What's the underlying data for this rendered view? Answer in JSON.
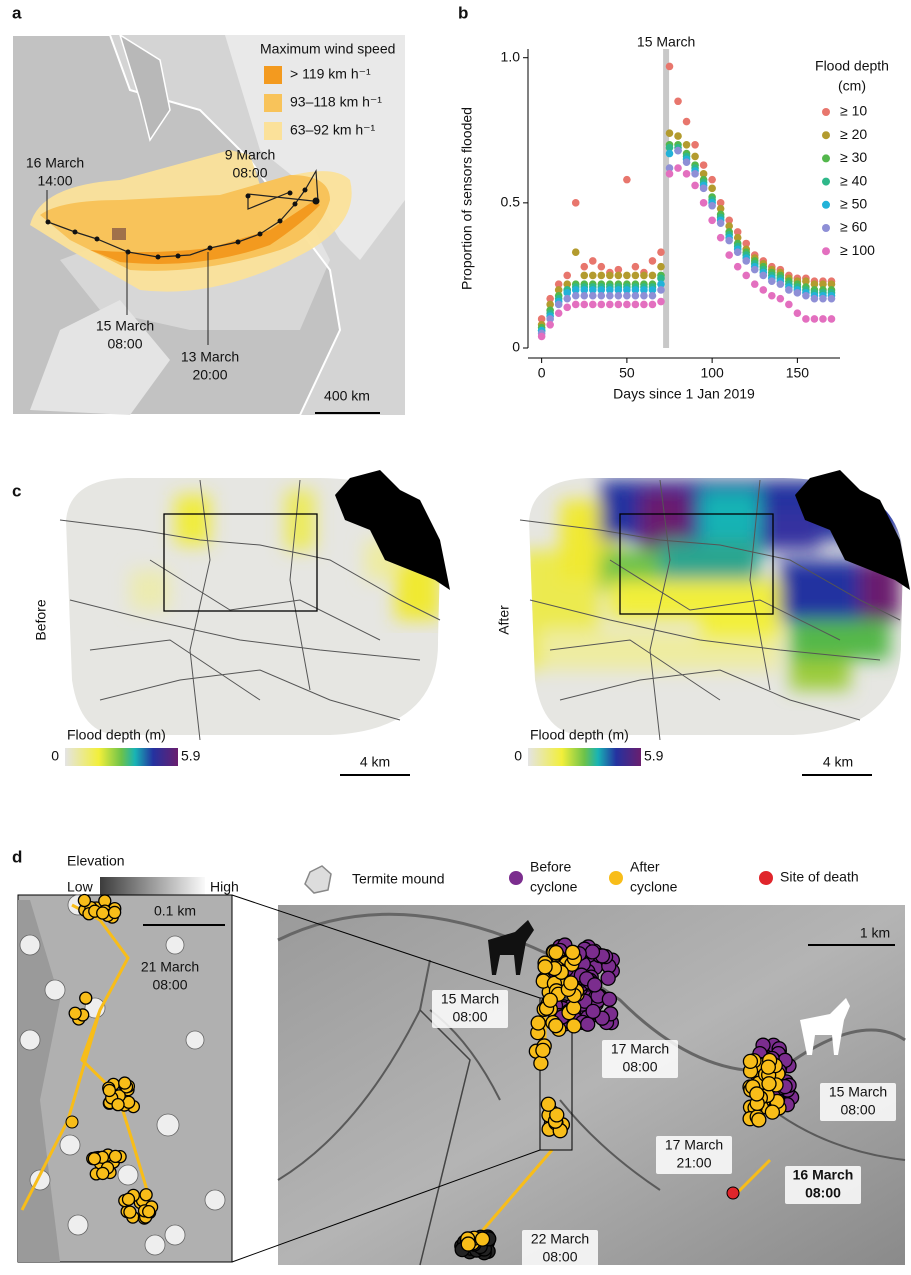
{
  "panel_labels": [
    "a",
    "b",
    "c",
    "d"
  ],
  "panel_a": {
    "legend_title": "Maximum wind speed",
    "legend": [
      {
        "label": "> 119 km h⁻¹",
        "color": "#f39a1f"
      },
      {
        "label": "93–118 km h⁻¹",
        "color": "#f8c35a"
      },
      {
        "label": "63–92 km h⁻¹",
        "color": "#fbe19a"
      }
    ],
    "track_labels": [
      [
        "16 March",
        "14:00"
      ],
      [
        "9 March",
        "08:00"
      ],
      [
        "15 March",
        "08:00"
      ],
      [
        "13 March",
        "20:00"
      ]
    ],
    "scale": "400 km"
  },
  "chart_data": {
    "type": "scatter",
    "title": "15 March",
    "xlabel": "Days since 1 Jan 2019",
    "ylabel": "Proportion of sensors flooded",
    "legend_title": [
      "Flood depth",
      "(cm)"
    ],
    "event_x": 73,
    "xlim": [
      -8,
      175
    ],
    "xticks": [
      0,
      50,
      100,
      150
    ],
    "ylim": [
      0,
      1.03
    ],
    "yticks": [
      0,
      0.5,
      {
        "value": 1,
        "label": "1.0"
      }
    ],
    "x": [
      0,
      5,
      10,
      15,
      20,
      25,
      30,
      35,
      40,
      45,
      50,
      55,
      60,
      65,
      70,
      75,
      80,
      85,
      90,
      95,
      100,
      105,
      110,
      115,
      120,
      125,
      130,
      135,
      140,
      145,
      150,
      155,
      160,
      165,
      170
    ],
    "series": [
      {
        "name": "≥ 10",
        "color": "#e8766d",
        "values": [
          0.1,
          0.17,
          0.22,
          0.25,
          0.5,
          0.28,
          0.3,
          0.28,
          0.26,
          0.27,
          0.58,
          0.28,
          0.26,
          0.3,
          0.33,
          0.97,
          0.85,
          0.78,
          0.7,
          0.63,
          0.58,
          0.5,
          0.44,
          0.4,
          0.36,
          0.32,
          0.3,
          0.28,
          0.27,
          0.25,
          0.24,
          0.24,
          0.23,
          0.23,
          0.23
        ]
      },
      {
        "name": "≥ 20",
        "color": "#b39b2e",
        "values": [
          0.08,
          0.15,
          0.2,
          0.22,
          0.33,
          0.25,
          0.25,
          0.25,
          0.25,
          0.25,
          0.25,
          0.25,
          0.25,
          0.25,
          0.28,
          0.74,
          0.73,
          0.7,
          0.66,
          0.6,
          0.55,
          0.48,
          0.42,
          0.38,
          0.34,
          0.31,
          0.29,
          0.27,
          0.26,
          0.24,
          0.23,
          0.23,
          0.22,
          0.22,
          0.22
        ]
      },
      {
        "name": "≥ 30",
        "color": "#53b74c",
        "values": [
          0.07,
          0.13,
          0.18,
          0.2,
          0.22,
          0.22,
          0.22,
          0.22,
          0.22,
          0.22,
          0.22,
          0.22,
          0.22,
          0.22,
          0.25,
          0.7,
          0.7,
          0.67,
          0.63,
          0.58,
          0.52,
          0.46,
          0.4,
          0.36,
          0.33,
          0.3,
          0.28,
          0.26,
          0.25,
          0.23,
          0.22,
          0.21,
          0.2,
          0.2,
          0.2
        ]
      },
      {
        "name": "≥ 40",
        "color": "#2fb88a",
        "values": [
          0.06,
          0.12,
          0.17,
          0.2,
          0.21,
          0.21,
          0.21,
          0.21,
          0.21,
          0.21,
          0.21,
          0.21,
          0.21,
          0.21,
          0.24,
          0.69,
          0.69,
          0.66,
          0.62,
          0.57,
          0.51,
          0.45,
          0.39,
          0.35,
          0.32,
          0.29,
          0.27,
          0.25,
          0.24,
          0.22,
          0.21,
          0.2,
          0.19,
          0.19,
          0.19
        ]
      },
      {
        "name": "≥ 50",
        "color": "#22b2d8",
        "values": [
          0.06,
          0.11,
          0.16,
          0.19,
          0.2,
          0.2,
          0.2,
          0.2,
          0.2,
          0.2,
          0.2,
          0.2,
          0.2,
          0.2,
          0.22,
          0.67,
          0.68,
          0.65,
          0.61,
          0.56,
          0.5,
          0.44,
          0.38,
          0.34,
          0.31,
          0.28,
          0.26,
          0.24,
          0.23,
          0.21,
          0.2,
          0.19,
          0.18,
          0.18,
          0.18
        ]
      },
      {
        "name": "≥ 60",
        "color": "#8e8fd6",
        "values": [
          0.05,
          0.1,
          0.15,
          0.17,
          0.18,
          0.18,
          0.18,
          0.18,
          0.18,
          0.18,
          0.18,
          0.18,
          0.18,
          0.18,
          0.2,
          0.62,
          0.68,
          0.64,
          0.6,
          0.55,
          0.49,
          0.43,
          0.37,
          0.33,
          0.3,
          0.27,
          0.25,
          0.23,
          0.22,
          0.2,
          0.19,
          0.18,
          0.17,
          0.17,
          0.17
        ]
      },
      {
        "name": "≥ 100",
        "color": "#e36fbf",
        "values": [
          0.04,
          0.08,
          0.12,
          0.14,
          0.15,
          0.15,
          0.15,
          0.15,
          0.15,
          0.15,
          0.15,
          0.15,
          0.15,
          0.15,
          0.16,
          0.6,
          0.62,
          0.6,
          0.56,
          0.5,
          0.44,
          0.38,
          0.32,
          0.28,
          0.25,
          0.22,
          0.2,
          0.18,
          0.17,
          0.15,
          0.12,
          0.1,
          0.1,
          0.1,
          0.1
        ]
      }
    ]
  },
  "panel_c": {
    "maps": [
      {
        "label": "Before",
        "colorbar_title": "Flood depth (m)",
        "colorbar_ticks": [
          0,
          5.9
        ],
        "scale": "4 km"
      },
      {
        "label": "After",
        "colorbar_title": "Flood depth (m)",
        "colorbar_ticks": [
          0,
          5.9
        ],
        "scale": "4 km"
      }
    ]
  },
  "panel_d": {
    "elevation": {
      "title": "Elevation",
      "low": "Low",
      "high": "High"
    },
    "legend": [
      {
        "label": [
          "Termite mound"
        ]
      },
      {
        "label": [
          "Before",
          "cyclone"
        ],
        "color": "#7b2d8e"
      },
      {
        "label": [
          "After",
          "cyclone"
        ],
        "color": "#f8bd19"
      },
      {
        "label": [
          "Site of death"
        ],
        "color": "#e0252b"
      }
    ],
    "inset_scale": "0.1 km",
    "inset_labels": [
      [
        "21 March",
        "08:00"
      ]
    ],
    "map_scale": "1 km",
    "map_labels": [
      [
        "15 March",
        "08:00"
      ],
      [
        "17 March",
        "08:00"
      ],
      [
        "15 March",
        "08:00"
      ],
      [
        "17 March",
        "21:00"
      ],
      [
        "16 March",
        "08:00"
      ],
      [
        "22 March",
        "08:00"
      ]
    ]
  }
}
